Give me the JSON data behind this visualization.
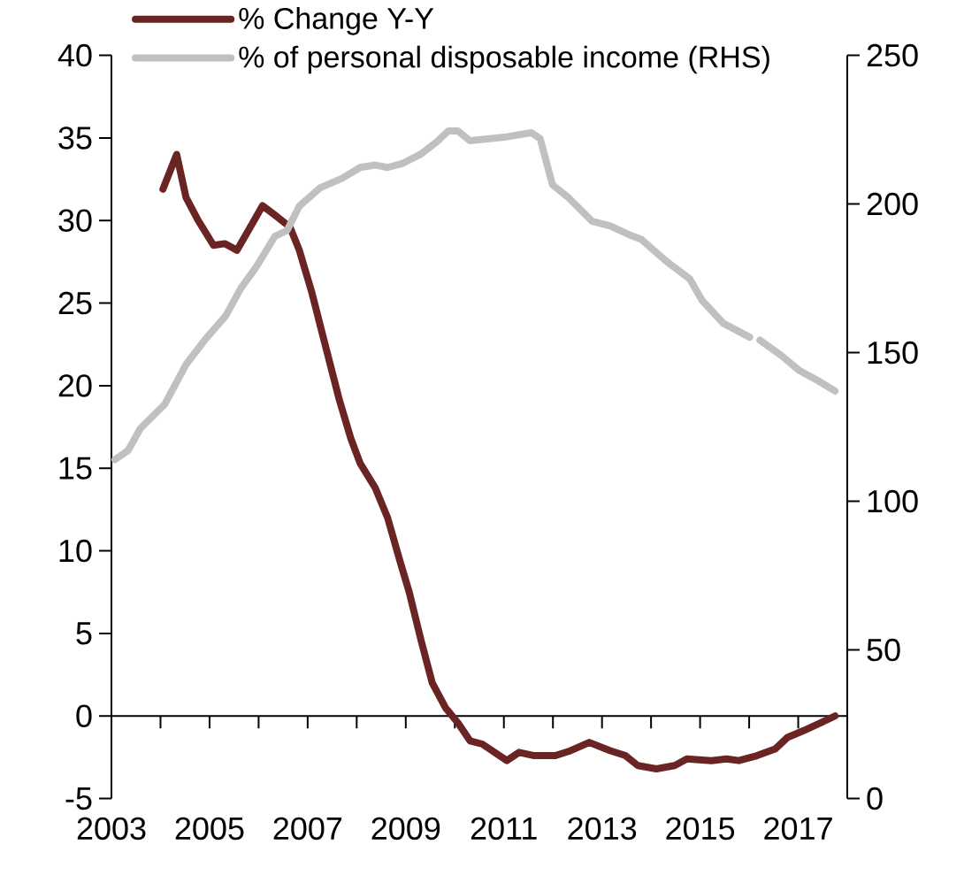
{
  "chart_data": {
    "type": "line",
    "xlim": [
      2003,
      2018
    ],
    "xticks": [
      2003,
      {
        "value": 2004,
        "label": null
      },
      2005,
      {
        "value": 2006,
        "label": null
      },
      2007,
      {
        "value": 2008,
        "label": null
      },
      2009,
      {
        "value": 2010,
        "label": null
      },
      2011,
      {
        "value": 2012,
        "label": null
      },
      2013,
      {
        "value": 2014,
        "label": null
      },
      2015,
      {
        "value": 2016,
        "label": null
      },
      2017,
      {
        "value": 2018,
        "label": null
      }
    ],
    "ylim": [
      -5,
      40
    ],
    "yticks": [
      -5,
      0,
      5,
      10,
      15,
      20,
      25,
      30,
      35,
      40
    ],
    "y2lim": [
      0,
      250
    ],
    "y2ticks": [
      0,
      50,
      100,
      150,
      200,
      250
    ],
    "legend": "top left",
    "series": [
      {
        "name": "% Change Y-Y",
        "color": "#6b2424",
        "x": [
          2004.05,
          2004.33,
          2004.52,
          2004.77,
          2005.08,
          2005.31,
          2005.56,
          2005.83,
          2006.08,
          2006.39,
          2006.64,
          2006.83,
          2007.08,
          2007.32,
          2007.64,
          2007.88,
          2008.07,
          2008.38,
          2008.63,
          2008.88,
          2009.07,
          2009.31,
          2009.54,
          2009.81,
          2010.06,
          2010.31,
          2010.56,
          2011.06,
          2011.31,
          2011.62,
          2012.05,
          2012.36,
          2012.74,
          2013.17,
          2013.48,
          2013.73,
          2014.11,
          2014.48,
          2014.73,
          2015.23,
          2015.54,
          2015.79,
          2016.16,
          2016.53,
          2016.78,
          2017.1,
          2017.47,
          2017.75
        ],
        "values": [
          31.9,
          34.0,
          31.4,
          30.0,
          28.5,
          28.6,
          28.2,
          29.6,
          30.9,
          30.2,
          29.6,
          28.2,
          25.7,
          22.9,
          19.2,
          16.8,
          15.3,
          13.8,
          12.0,
          9.4,
          7.5,
          4.6,
          2.0,
          0.5,
          -0.4,
          -1.5,
          -1.7,
          -2.7,
          -2.2,
          -2.4,
          -2.4,
          -2.1,
          -1.6,
          -2.1,
          -2.4,
          -3.0,
          -3.2,
          -3.0,
          -2.6,
          -2.7,
          -2.6,
          -2.7,
          -2.4,
          -2.0,
          -1.3,
          -0.9,
          -0.4,
          0.0
        ]
      },
      {
        "name": "% of personal disposable income (RHS)",
        "color": "#c0c0c0",
        "axis": "y2",
        "x": [
          2003.07,
          2003.34,
          2003.59,
          2004.09,
          2004.52,
          2004.9,
          2005.33,
          2005.64,
          2005.95,
          2006.33,
          2006.58,
          2006.83,
          2007.26,
          2007.7,
          2008.07,
          2008.38,
          2008.63,
          2008.94,
          2009.31,
          2009.63,
          2009.87,
          2010.06,
          2010.31,
          2011.06,
          2011.56,
          2011.74,
          2011.99,
          2012.3,
          2012.8,
          2013.17,
          2013.55,
          2013.8,
          2014.3,
          2014.79,
          2015.04,
          2015.48,
          2016.01,
          2016.1,
          2016.22,
          2016.66,
          2017.03,
          2017.41,
          2017.75
        ],
        "values": [
          114.0,
          117.1,
          124.5,
          132.7,
          146.0,
          154.2,
          162.4,
          171.7,
          178.8,
          189.1,
          191.1,
          199.3,
          205.5,
          208.6,
          212.3,
          213.1,
          212.3,
          213.7,
          216.8,
          220.9,
          224.6,
          224.6,
          221.3,
          222.6,
          224.0,
          222.0,
          206.5,
          202.4,
          194.2,
          192.6,
          189.7,
          188.1,
          180.9,
          174.8,
          167.6,
          159.8,
          155.2,
          null,
          154.2,
          149.0,
          143.9,
          140.5,
          137.1
        ]
      }
    ]
  }
}
